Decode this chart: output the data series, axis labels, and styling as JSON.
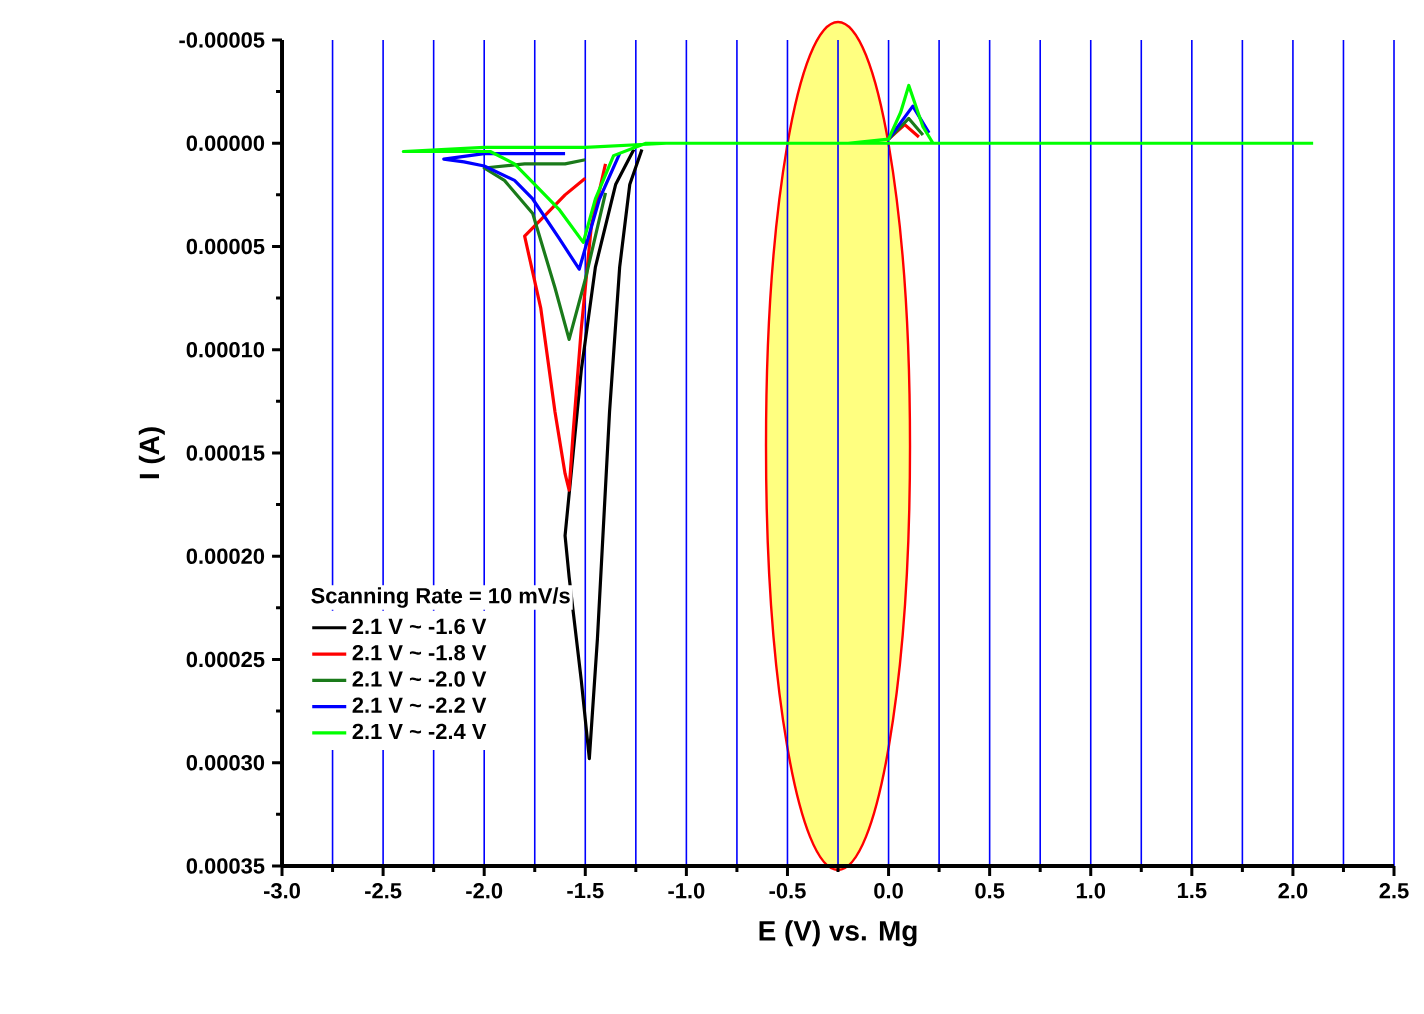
{
  "chart_data": {
    "type": "line",
    "xlabel": "E (V) vs. Mg",
    "ylabel": "I (A)",
    "legend_title": "Scanning Rate = 10 mV/s",
    "legend": "bottom left",
    "grid": "x",
    "xlim": [
      -3.0,
      2.5
    ],
    "ylim": [
      0.00035,
      -5e-05
    ],
    "xticks": [
      {
        "value": -3.0,
        "label": "-3.0"
      },
      {
        "value": -2.5,
        "label": "-2.5"
      },
      {
        "value": -2.0,
        "label": "-2.0"
      },
      {
        "value": -1.5,
        "label": "-1.5"
      },
      {
        "value": -1.0,
        "label": "-1.0"
      },
      {
        "value": -0.5,
        "label": "-0.5"
      },
      {
        "value": 0.0,
        "label": "0.0"
      },
      {
        "value": 0.5,
        "label": "0.5"
      },
      {
        "value": 1.0,
        "label": "1.0"
      },
      {
        "value": 1.5,
        "label": "1.5"
      },
      {
        "value": 2.0,
        "label": "2.0"
      },
      {
        "value": 2.5,
        "label": "2.5"
      }
    ],
    "yticks": [
      {
        "value": -5e-05,
        "label": "-0.00005"
      },
      {
        "value": 0.0,
        "label": "0.00000"
      },
      {
        "value": 5e-05,
        "label": "0.00005"
      },
      {
        "value": 0.0001,
        "label": "0.00010"
      },
      {
        "value": 0.00015,
        "label": "0.00015"
      },
      {
        "value": 0.0002,
        "label": "0.00020"
      },
      {
        "value": 0.00025,
        "label": "0.00025"
      },
      {
        "value": 0.0003,
        "label": "0.00030"
      },
      {
        "value": 0.00035,
        "label": "0.00035"
      }
    ],
    "series": [
      {
        "name": "2.1 V ~ -1.6 V",
        "color": "#000000",
        "x": [
          -1.26,
          -1.35,
          -1.45,
          -1.52,
          -1.56,
          -1.6,
          -1.58,
          -1.52,
          -1.48,
          -1.44,
          -1.38,
          -1.33,
          -1.28,
          -1.22
        ],
        "values": [
          3e-06,
          2e-05,
          6e-05,
          0.00011,
          0.00015,
          0.00019,
          0.00021,
          0.00026,
          0.000298,
          0.00024,
          0.00013,
          6e-05,
          2e-05,
          3e-06
        ]
      },
      {
        "name": "2.1 V ~ -1.8 V",
        "color": "#ff0000",
        "x": [
          -1.5,
          -1.6,
          -1.7,
          -1.8,
          -1.72,
          -1.65,
          -1.6,
          -1.58,
          -1.56,
          -1.52,
          -1.47,
          -1.4,
          -0.2,
          0.0,
          0.08,
          0.15
        ],
        "values": [
          1.7e-05,
          2.5e-05,
          3.5e-05,
          4.5e-05,
          8e-05,
          0.00013,
          0.00016,
          0.000168,
          0.00014,
          9e-05,
          4e-05,
          1e-05,
          null,
          -2e-06,
          -9e-06,
          -3e-06
        ]
      },
      {
        "name": "2.1 V ~ -2.0 V",
        "color": "#1a7a1a",
        "x": [
          -1.5,
          -1.6,
          -1.8,
          -2.0,
          -1.9,
          -1.76,
          -1.65,
          -1.58,
          -1.5,
          -1.4,
          -0.2,
          0.0,
          0.1,
          0.17
        ],
        "values": [
          8e-06,
          1e-05,
          1e-05,
          1.2e-05,
          1.8e-05,
          3.4e-05,
          7e-05,
          9.5e-05,
          6.6e-05,
          2.4e-05,
          null,
          -2e-06,
          -1.2e-05,
          -4e-06
        ]
      },
      {
        "name": "2.1 V ~ -2.2 V",
        "color": "#0000ff",
        "x": [
          -1.6,
          -2.0,
          -2.2,
          -2.1,
          -2.0,
          -1.85,
          -1.76,
          -1.63,
          -1.53,
          -1.43,
          -1.33,
          -0.2,
          0.0,
          0.12,
          0.2
        ],
        "values": [
          5e-06,
          5e-06,
          7.7e-06,
          9e-06,
          1.1e-05,
          1.8e-05,
          2.7e-05,
          4.6e-05,
          6.1e-05,
          2.7e-05,
          5e-06,
          null,
          -2e-06,
          -1.8e-05,
          -5e-06
        ]
      },
      {
        "name": "2.1 V ~ -2.4 V",
        "color": "#00ff00",
        "x": [
          2.1,
          -1.1,
          -1.5,
          -2.0,
          -2.4,
          -2.2,
          -1.97,
          -1.85,
          -1.76,
          -1.63,
          -1.51,
          -1.45,
          -1.36,
          -1.2,
          -0.2,
          0.0,
          0.06,
          0.1,
          0.17,
          0.22
        ],
        "values": [
          0,
          0,
          2e-06,
          2e-06,
          4e-06,
          4e-06,
          4e-06,
          1e-05,
          1.9e-05,
          3.2e-05,
          4.8e-05,
          2.7e-05,
          6e-06,
          0,
          0,
          -2e-06,
          -1.5e-05,
          -2.8e-05,
          -8e-06,
          0
        ]
      }
    ]
  }
}
